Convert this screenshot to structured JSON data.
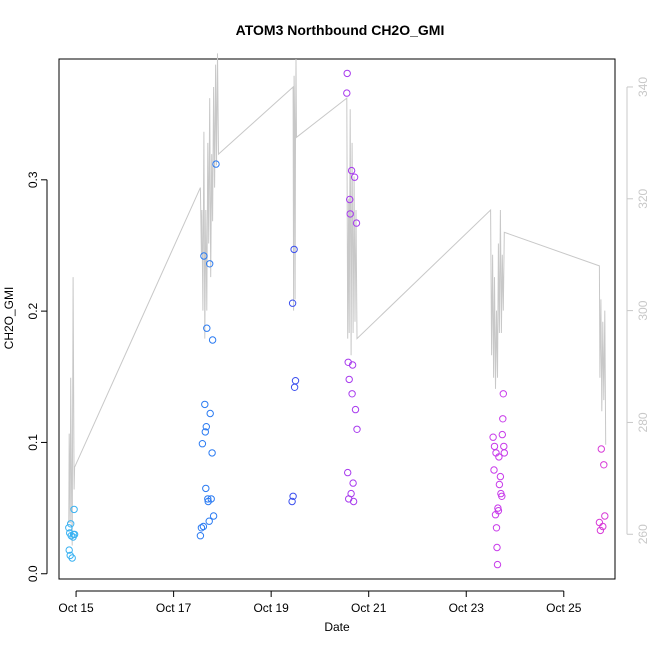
{
  "chart_data": {
    "type": "scatter",
    "title": "ATOM3 Northbound CH2O_GMI",
    "xlabel": "Date",
    "ylabel": "CH2O_GMI",
    "xlim": [
      14.55,
      25.95
    ],
    "ylim": [
      -0.004,
      0.392
    ],
    "x_ticks": [
      {
        "value": 14.9,
        "label": "Oct 15"
      },
      {
        "value": 16.9,
        "label": "Oct 17"
      },
      {
        "value": 18.9,
        "label": "Oct 19"
      },
      {
        "value": 20.9,
        "label": "Oct 21"
      },
      {
        "value": 22.9,
        "label": "Oct 23"
      },
      {
        "value": 24.9,
        "label": "Oct 25"
      }
    ],
    "y_ticks": [
      0.0,
      0.1,
      0.2,
      0.3
    ],
    "y_tick_labels": [
      "0.0",
      "0.1",
      "0.2",
      "0.3"
    ],
    "y2_lim": [
      252,
      345
    ],
    "y2_ticks": [
      260,
      280,
      300,
      320,
      340
    ],
    "grid": false,
    "secondary_line_color": "#c8c8c8",
    "secondary_line": [
      [
        14.75,
        262
      ],
      [
        14.76,
        278
      ],
      [
        14.77,
        270
      ],
      [
        14.78,
        262
      ],
      [
        14.79,
        288
      ],
      [
        14.8,
        276
      ],
      [
        14.81,
        265
      ],
      [
        14.82,
        258
      ],
      [
        14.84,
        306
      ],
      [
        14.86,
        268
      ],
      [
        14.87,
        272
      ],
      [
        17.45,
        322
      ],
      [
        17.47,
        310
      ],
      [
        17.48,
        318
      ],
      [
        17.5,
        300
      ],
      [
        17.52,
        332
      ],
      [
        17.54,
        295
      ],
      [
        17.56,
        318
      ],
      [
        17.58,
        300
      ],
      [
        17.6,
        330
      ],
      [
        17.62,
        312
      ],
      [
        17.64,
        338
      ],
      [
        17.66,
        306
      ],
      [
        17.68,
        328
      ],
      [
        17.7,
        316
      ],
      [
        17.72,
        340
      ],
      [
        17.74,
        322
      ],
      [
        17.76,
        344
      ],
      [
        17.78,
        326
      ],
      [
        17.8,
        346
      ],
      [
        17.82,
        328
      ],
      [
        19.35,
        340
      ],
      [
        19.36,
        300
      ],
      [
        19.37,
        342
      ],
      [
        19.38,
        334
      ],
      [
        19.39,
        302
      ],
      [
        19.4,
        330
      ],
      [
        19.41,
        345
      ],
      [
        19.42,
        331
      ],
      [
        20.45,
        338
      ],
      [
        20.47,
        295
      ],
      [
        20.49,
        320
      ],
      [
        20.5,
        296
      ],
      [
        20.52,
        336
      ],
      [
        20.54,
        292
      ],
      [
        20.56,
        330
      ],
      [
        20.58,
        296
      ],
      [
        20.6,
        324
      ],
      [
        20.62,
        298
      ],
      [
        20.64,
        318
      ],
      [
        20.66,
        295
      ],
      [
        23.4,
        318
      ],
      [
        23.42,
        292
      ],
      [
        23.44,
        310
      ],
      [
        23.46,
        288
      ],
      [
        23.48,
        306
      ],
      [
        23.5,
        286
      ],
      [
        23.52,
        300
      ],
      [
        23.54,
        288
      ],
      [
        23.56,
        312
      ],
      [
        23.58,
        296
      ],
      [
        23.6,
        318
      ],
      [
        23.62,
        296
      ],
      [
        23.64,
        310
      ],
      [
        23.66,
        300
      ],
      [
        23.68,
        314
      ],
      [
        25.63,
        308
      ],
      [
        25.64,
        288
      ],
      [
        25.66,
        302
      ],
      [
        25.68,
        282
      ],
      [
        25.7,
        298
      ],
      [
        25.72,
        284
      ],
      [
        25.74,
        300
      ],
      [
        25.76,
        276
      ]
    ],
    "series": [
      {
        "values": [
          [
            14.75,
            0.035
          ],
          [
            14.76,
            0.018
          ],
          [
            14.77,
            0.031
          ],
          [
            14.78,
            0.014
          ],
          [
            14.79,
            0.038
          ],
          [
            14.8,
            0.029
          ],
          [
            14.82,
            0.012
          ],
          [
            14.84,
            0.028
          ],
          [
            14.85,
            0.03
          ],
          [
            14.86,
            0.049
          ],
          [
            14.87,
            0.03
          ]
        ]
      },
      {
        "values": [
          [
            17.45,
            0.029
          ],
          [
            17.47,
            0.035
          ],
          [
            17.49,
            0.099
          ],
          [
            17.51,
            0.036
          ],
          [
            17.52,
            0.242
          ],
          [
            17.54,
            0.129
          ],
          [
            17.55,
            0.108
          ],
          [
            17.56,
            0.065
          ],
          [
            17.57,
            0.112
          ],
          [
            17.58,
            0.187
          ],
          [
            17.6,
            0.057
          ],
          [
            17.61,
            0.055
          ],
          [
            17.63,
            0.04
          ],
          [
            17.64,
            0.236
          ],
          [
            17.65,
            0.122
          ],
          [
            17.67,
            0.057
          ],
          [
            17.69,
            0.092
          ],
          [
            17.7,
            0.178
          ],
          [
            17.72,
            0.044
          ],
          [
            17.77,
            0.312
          ]
        ]
      },
      {
        "values": [
          [
            19.33,
            0.055
          ],
          [
            19.34,
            0.206
          ],
          [
            19.35,
            0.059
          ],
          [
            19.37,
            0.247
          ],
          [
            19.38,
            0.142
          ],
          [
            19.4,
            0.147
          ]
        ]
      },
      {
        "values": [
          [
            20.45,
            0.366
          ],
          [
            20.46,
            0.381
          ],
          [
            20.47,
            0.077
          ],
          [
            20.48,
            0.161
          ],
          [
            20.49,
            0.057
          ],
          [
            20.5,
            0.148
          ],
          [
            20.51,
            0.285
          ],
          [
            20.52,
            0.274
          ],
          [
            20.54,
            0.061
          ],
          [
            20.55,
            0.307
          ],
          [
            20.56,
            0.137
          ],
          [
            20.57,
            0.159
          ],
          [
            20.58,
            0.069
          ],
          [
            20.59,
            0.055
          ],
          [
            20.61,
            0.302
          ],
          [
            20.63,
            0.125
          ],
          [
            20.65,
            0.267
          ],
          [
            20.66,
            0.11
          ]
        ]
      },
      {
        "values": [
          [
            23.45,
            0.104
          ],
          [
            23.47,
            0.079
          ],
          [
            23.48,
            0.097
          ],
          [
            23.5,
            0.045
          ],
          [
            23.51,
            0.092
          ],
          [
            23.52,
            0.035
          ],
          [
            23.53,
            0.02
          ],
          [
            23.54,
            0.007
          ],
          [
            23.55,
            0.05
          ],
          [
            23.56,
            0.048
          ],
          [
            23.57,
            0.089
          ],
          [
            23.58,
            0.068
          ],
          [
            23.6,
            0.074
          ],
          [
            23.61,
            0.061
          ],
          [
            23.63,
            0.059
          ],
          [
            23.64,
            0.106
          ],
          [
            23.65,
            0.118
          ],
          [
            23.66,
            0.137
          ],
          [
            23.67,
            0.097
          ],
          [
            23.68,
            0.092
          ]
        ]
      },
      {
        "values": [
          [
            25.63,
            0.039
          ],
          [
            25.65,
            0.033
          ],
          [
            25.67,
            0.095
          ],
          [
            25.7,
            0.036
          ],
          [
            25.72,
            0.083
          ],
          [
            25.74,
            0.044
          ]
        ]
      }
    ],
    "series_colors": [
      "#3ab2f2",
      "#2b7bf2",
      "#3b4fee",
      "#a83bee",
      "#c83bea",
      "#d83bd8"
    ]
  }
}
